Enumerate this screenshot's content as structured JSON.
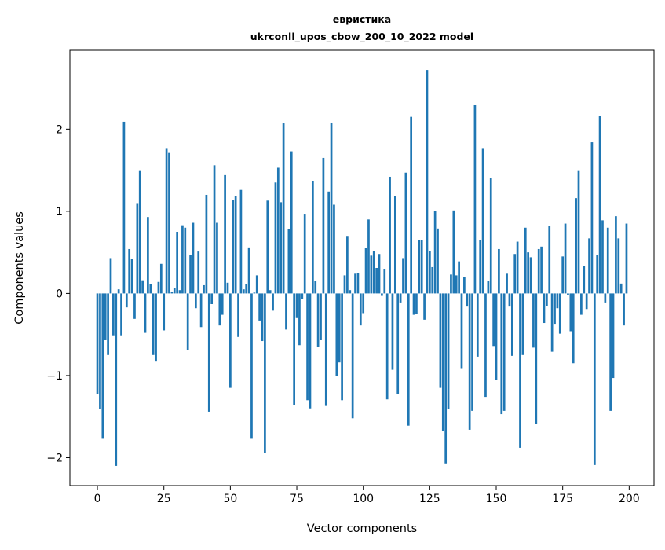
{
  "chart_data": {
    "type": "bar",
    "title_line1": "евристика",
    "title_line2": "ukrconll_upos_cbow_200_10_2022 model",
    "xlabel": "Vector components",
    "ylabel": "Components values",
    "xlim": [
      -10.35,
      209.35
    ],
    "ylim": [
      -2.34,
      2.96
    ],
    "xticks": [
      0,
      25,
      50,
      75,
      100,
      125,
      150,
      175,
      200
    ],
    "xtick_labels": [
      "0",
      "25",
      "50",
      "75",
      "100",
      "125",
      "150",
      "175",
      "200"
    ],
    "yticks": [
      -2,
      -1,
      0,
      1,
      2
    ],
    "ytick_labels": [
      "−2",
      "−1",
      "0",
      "1",
      "2"
    ],
    "grid": false,
    "bar_color": "#1f77b4",
    "values": [
      -1.23,
      -1.41,
      -1.77,
      -0.57,
      -0.75,
      0.43,
      -0.51,
      -2.1,
      0.05,
      -0.51,
      2.09,
      -0.17,
      0.54,
      0.42,
      -0.31,
      1.09,
      1.49,
      0.16,
      -0.48,
      0.93,
      0.11,
      -0.75,
      -0.83,
      0.14,
      0.36,
      -0.45,
      1.76,
      1.71,
      0.02,
      0.07,
      0.75,
      0.04,
      0.83,
      0.8,
      -0.69,
      0.47,
      0.86,
      -0.18,
      0.51,
      -0.41,
      0.1,
      1.2,
      -1.44,
      -0.13,
      1.56,
      0.86,
      -0.39,
      -0.26,
      1.44,
      0.13,
      -1.15,
      1.14,
      1.19,
      -0.53,
      1.26,
      0.05,
      0.11,
      0.56,
      -1.77,
      0.01,
      0.22,
      -0.33,
      -0.58,
      -1.94,
      1.13,
      0.04,
      -0.21,
      1.35,
      1.53,
      1.11,
      2.07,
      -0.44,
      0.78,
      1.73,
      -1.36,
      -0.3,
      -0.63,
      -0.07,
      0.96,
      -1.3,
      -1.4,
      1.37,
      0.15,
      -0.65,
      -0.57,
      1.65,
      -1.37,
      1.24,
      2.08,
      1.08,
      -1.01,
      -0.84,
      -1.3,
      0.22,
      0.7,
      0.04,
      -1.52,
      0.24,
      0.25,
      -0.39,
      -0.24,
      0.55,
      0.9,
      0.46,
      0.52,
      0.31,
      0.48,
      -0.03,
      0.3,
      -1.29,
      1.42,
      -0.93,
      1.19,
      -1.23,
      -0.11,
      0.43,
      1.47,
      -1.61,
      2.15,
      -0.26,
      -0.25,
      0.65,
      0.65,
      -0.32,
      2.72,
      0.52,
      0.32,
      1.0,
      0.79,
      -1.15,
      -1.68,
      -2.07,
      -1.41,
      0.23,
      1.01,
      0.22,
      0.39,
      -0.91,
      0.2,
      -0.16,
      -1.66,
      -1.43,
      2.3,
      -0.77,
      0.65,
      1.76,
      -1.26,
      0.15,
      1.41,
      -0.64,
      -1.05,
      0.54,
      -1.47,
      -1.43,
      0.24,
      -0.16,
      -0.76,
      0.48,
      0.63,
      -1.88,
      -0.75,
      0.8,
      0.5,
      0.44,
      -0.66,
      -1.59,
      0.54,
      0.57,
      -0.36,
      -0.15,
      0.82,
      -0.71,
      -0.37,
      -0.18,
      -0.49,
      0.45,
      0.85,
      -0.02,
      -0.46,
      -0.85,
      1.16,
      1.49,
      -0.26,
      0.33,
      -0.19,
      0.67,
      1.84,
      -2.09,
      0.47,
      2.16,
      0.89,
      -0.11,
      0.8,
      -1.43,
      -1.03,
      0.94,
      0.67,
      0.12,
      -0.39,
      0.85
    ]
  }
}
